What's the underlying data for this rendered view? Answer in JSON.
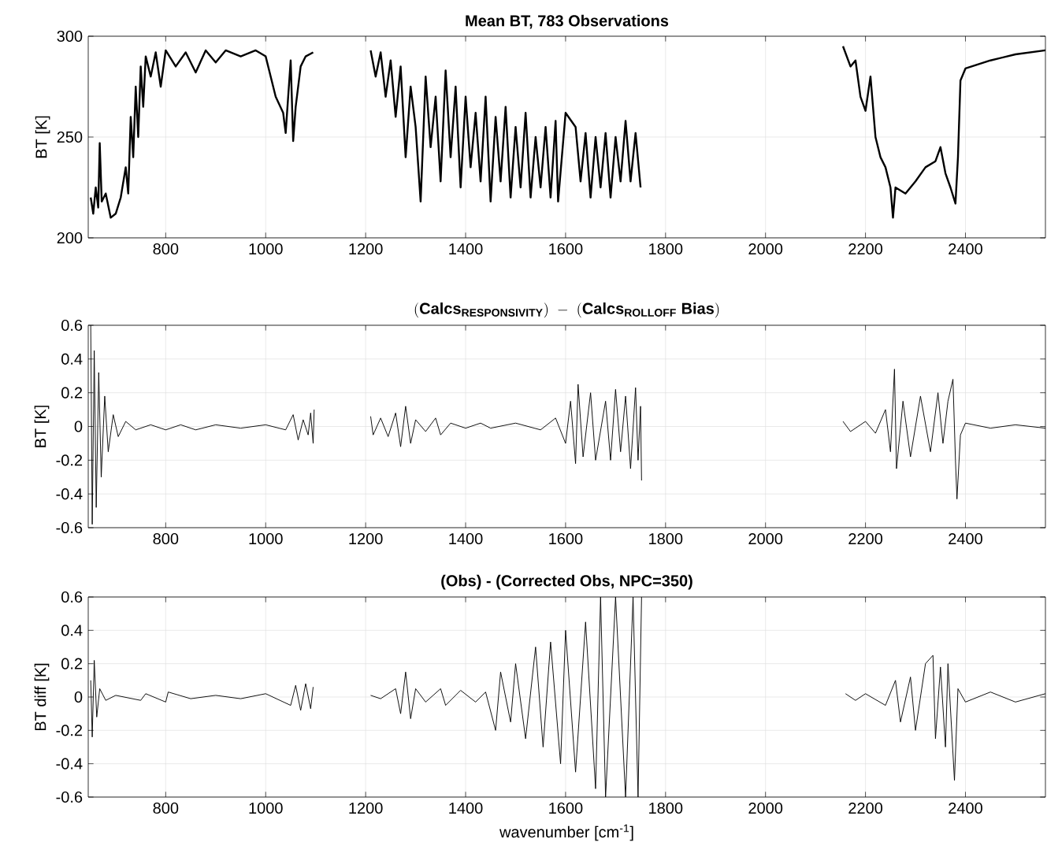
{
  "chart_data": [
    {
      "type": "line",
      "title": "Mean BT, 783 Observations",
      "ylabel": "BT [K]",
      "xlim": [
        645,
        2560
      ],
      "ylim": [
        200,
        300
      ],
      "xticks": [
        800,
        1000,
        1200,
        1400,
        1600,
        1800,
        2000,
        2200,
        2400
      ],
      "yticks": [
        200,
        250,
        300
      ],
      "grid": true,
      "line_style": "solid",
      "series": [
        {
          "color": "#000000",
          "x": [
            650,
            655,
            660,
            665,
            668,
            672,
            680,
            690,
            700,
            710,
            720,
            725,
            730,
            735,
            740,
            745,
            750,
            755,
            760,
            770,
            780,
            790,
            800,
            820,
            840,
            860,
            880,
            900,
            920,
            950,
            980,
            1000,
            1020,
            1035,
            1040,
            1045,
            1050,
            1055,
            1060,
            1070,
            1080,
            1095,
            1150,
            1210,
            1220,
            1230,
            1240,
            1250,
            1260,
            1270,
            1280,
            1290,
            1300,
            1310,
            1320,
            1330,
            1340,
            1350,
            1360,
            1370,
            1380,
            1390,
            1400,
            1410,
            1420,
            1430,
            1440,
            1450,
            1460,
            1470,
            1480,
            1490,
            1500,
            1510,
            1520,
            1530,
            1540,
            1550,
            1560,
            1570,
            1580,
            1585,
            1600,
            1620,
            1630,
            1640,
            1650,
            1660,
            1670,
            1680,
            1690,
            1700,
            1710,
            1720,
            1730,
            1740,
            1750,
            1950,
            2155,
            2170,
            2180,
            2190,
            2200,
            2210,
            2220,
            2230,
            2240,
            2250,
            2255,
            2260,
            2280,
            2300,
            2320,
            2340,
            2350,
            2360,
            2370,
            2380,
            2385,
            2390,
            2400,
            2450,
            2500,
            2560
          ],
          "values": [
            220,
            212,
            225,
            215,
            247,
            218,
            222,
            210,
            212,
            220,
            235,
            222,
            260,
            240,
            275,
            250,
            285,
            265,
            290,
            280,
            292,
            275,
            293,
            285,
            292,
            282,
            293,
            287,
            293,
            290,
            293,
            290,
            270,
            262,
            252,
            270,
            288,
            248,
            265,
            285,
            290,
            292,
            null,
            293,
            280,
            292,
            270,
            288,
            260,
            285,
            240,
            275,
            255,
            218,
            280,
            245,
            270,
            228,
            283,
            240,
            275,
            225,
            270,
            235,
            262,
            228,
            270,
            218,
            260,
            228,
            265,
            220,
            255,
            225,
            262,
            220,
            250,
            225,
            255,
            220,
            258,
            218,
            262,
            255,
            228,
            252,
            220,
            250,
            225,
            252,
            220,
            250,
            228,
            258,
            228,
            252,
            225,
            null,
            295,
            285,
            288,
            270,
            263,
            280,
            250,
            240,
            235,
            225,
            210,
            225,
            222,
            228,
            235,
            238,
            245,
            232,
            225,
            217,
            240,
            278,
            284,
            288,
            291,
            293
          ]
        }
      ]
    },
    {
      "type": "line",
      "title": "\\mathbf{(Calcs_{RESPONSIVITY})\\ -\\ (Calcs_{ROLLOFF}\\ Bias)}",
      "ylabel": "BT [K]",
      "xlim": [
        645,
        2560
      ],
      "ylim": [
        -0.6,
        0.6
      ],
      "xticks": [
        800,
        1000,
        1200,
        1400,
        1600,
        1800,
        2000,
        2200,
        2400
      ],
      "yticks": [
        -0.6,
        -0.4,
        -0.2,
        0,
        0.2,
        0.4,
        0.6
      ],
      "grid": true,
      "line_style": "solid",
      "series": [
        {
          "color": "#000000",
          "x": [
            650,
            653,
            657,
            661,
            666,
            671,
            678,
            685,
            695,
            705,
            720,
            740,
            770,
            800,
            830,
            860,
            900,
            950,
            1000,
            1040,
            1055,
            1065,
            1075,
            1085,
            1090,
            1095,
            1097,
            1150,
            1210,
            1215,
            1230,
            1245,
            1260,
            1270,
            1280,
            1290,
            1300,
            1320,
            1340,
            1350,
            1370,
            1400,
            1430,
            1450,
            1500,
            1550,
            1580,
            1600,
            1610,
            1620,
            1625,
            1635,
            1650,
            1660,
            1680,
            1690,
            1700,
            1710,
            1720,
            1730,
            1740,
            1745,
            1750,
            1752,
            1950,
            2155,
            2170,
            2200,
            2220,
            2240,
            2250,
            2258,
            2262,
            2275,
            2290,
            2310,
            2330,
            2345,
            2355,
            2365,
            2375,
            2380,
            2383,
            2390,
            2400,
            2450,
            2500,
            2560
          ],
          "values": [
            0.6,
            -0.58,
            0.45,
            -0.48,
            0.32,
            -0.3,
            0.18,
            -0.15,
            0.07,
            -0.06,
            0.03,
            -0.02,
            0.01,
            -0.02,
            0.01,
            -0.02,
            0.01,
            -0.01,
            0.01,
            -0.02,
            0.07,
            -0.08,
            0.04,
            -0.05,
            0.08,
            -0.1,
            0.1,
            null,
            0.06,
            -0.05,
            0.05,
            -0.06,
            0.08,
            -0.12,
            0.12,
            -0.1,
            0.04,
            -0.03,
            0.05,
            -0.05,
            0.02,
            -0.01,
            0.02,
            -0.01,
            0.02,
            -0.02,
            0.05,
            -0.1,
            0.15,
            -0.22,
            0.25,
            -0.18,
            0.2,
            -0.2,
            0.15,
            -0.2,
            0.22,
            -0.15,
            0.18,
            -0.25,
            0.23,
            -0.2,
            0.12,
            -0.32,
            null,
            0.03,
            -0.03,
            0.03,
            -0.04,
            0.1,
            -0.15,
            0.34,
            -0.25,
            0.15,
            -0.18,
            0.18,
            -0.15,
            0.2,
            -0.1,
            0.15,
            0.28,
            -0.2,
            -0.43,
            -0.05,
            0.02,
            -0.01,
            0.01,
            -0.01
          ]
        }
      ]
    },
    {
      "type": "line",
      "title": "(Obs) - (Corrected Obs, NPC=350)",
      "xlabel": "wavenumber [cm$^{-1}$]",
      "ylabel": "BT diff [K]",
      "xlim": [
        645,
        2560
      ],
      "ylim": [
        -0.6,
        0.6
      ],
      "xticks": [
        800,
        1000,
        1200,
        1400,
        1600,
        1800,
        2000,
        2200,
        2400
      ],
      "yticks": [
        -0.6,
        -0.4,
        -0.2,
        0,
        0.2,
        0.4,
        0.6
      ],
      "grid": true,
      "line_style": "solid",
      "series": [
        {
          "color": "#000000",
          "x": [
            650,
            653,
            657,
            662,
            668,
            680,
            700,
            750,
            760,
            800,
            805,
            850,
            900,
            950,
            1000,
            1050,
            1060,
            1070,
            1080,
            1090,
            1095,
            1150,
            1210,
            1230,
            1260,
            1270,
            1280,
            1290,
            1300,
            1320,
            1350,
            1360,
            1390,
            1420,
            1440,
            1460,
            1470,
            1490,
            1500,
            1520,
            1540,
            1555,
            1570,
            1590,
            1600,
            1620,
            1640,
            1660,
            1670,
            1680,
            1700,
            1720,
            1735,
            1745,
            1752,
            1950,
            2160,
            2180,
            2200,
            2240,
            2260,
            2270,
            2290,
            2300,
            2320,
            2335,
            2340,
            2350,
            2360,
            2365,
            2378,
            2385,
            2400,
            2450,
            2500,
            2560
          ],
          "values": [
            0.1,
            -0.24,
            0.22,
            -0.12,
            0.05,
            -0.02,
            0.01,
            -0.02,
            0.02,
            -0.03,
            0.03,
            -0.01,
            0.01,
            -0.01,
            0.02,
            -0.05,
            0.07,
            -0.08,
            0.08,
            -0.07,
            0.06,
            null,
            0.01,
            -0.01,
            0.05,
            -0.1,
            0.15,
            -0.13,
            0.05,
            -0.03,
            0.05,
            -0.05,
            0.04,
            -0.03,
            0.03,
            -0.2,
            0.15,
            -0.15,
            0.2,
            -0.25,
            0.3,
            -0.3,
            0.33,
            -0.4,
            0.4,
            -0.45,
            0.45,
            -0.55,
            0.6,
            -0.6,
            0.6,
            -0.6,
            0.6,
            -0.6,
            0.6,
            null,
            0.02,
            -0.02,
            0.02,
            -0.05,
            0.1,
            -0.15,
            0.12,
            -0.2,
            0.2,
            0.25,
            -0.25,
            0.18,
            -0.3,
            0.2,
            -0.5,
            0.05,
            -0.03,
            0.03,
            -0.03,
            0.02
          ]
        }
      ]
    }
  ]
}
